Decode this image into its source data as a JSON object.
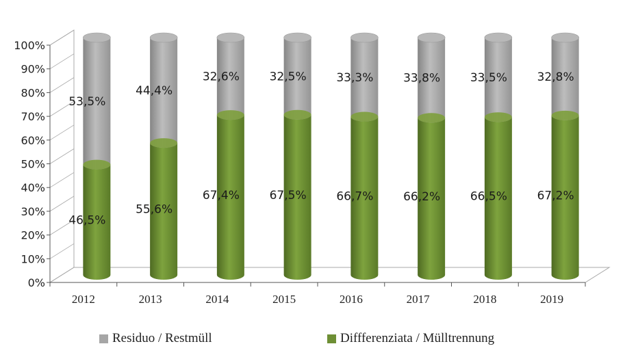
{
  "chart_data": {
    "type": "bar",
    "stacked": true,
    "percent": true,
    "categories": [
      "2012",
      "2013",
      "2014",
      "2015",
      "2016",
      "2017",
      "2018",
      "2019"
    ],
    "series": [
      {
        "name": "Diffferenziata / Mülltrennung",
        "values": [
          46.5,
          55.6,
          67.4,
          67.5,
          66.7,
          66.2,
          66.5,
          67.2
        ],
        "labels": [
          "46,5%",
          "55,6%",
          "67,4%",
          "67,5%",
          "66,7%",
          "66,2%",
          "66,5%",
          "67,2%"
        ],
        "color": "#6e8f35"
      },
      {
        "name": "Residuo / Restmüll",
        "values": [
          53.5,
          44.4,
          32.6,
          32.5,
          33.3,
          33.8,
          33.5,
          32.8
        ],
        "labels": [
          "53,5%",
          "44,4%",
          "32,6%",
          "32,5%",
          "33,3%",
          "33,8%",
          "33,5%",
          "32,8%"
        ],
        "color": "#a6a6a6"
      }
    ],
    "yticks": [
      "0%",
      "10%",
      "20%",
      "30%",
      "40%",
      "50%",
      "60%",
      "70%",
      "80%",
      "90%",
      "100%"
    ],
    "ylim": [
      0,
      100
    ],
    "grid": false,
    "legend": "bottom"
  },
  "legend": {
    "residuo": "Residuo / Restmüll",
    "differenziata": "Diffferenziata / Mülltrennung"
  }
}
